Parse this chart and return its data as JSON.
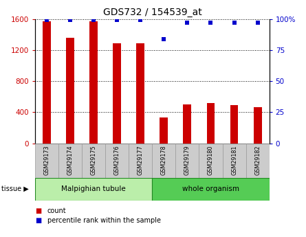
{
  "title": "GDS732 / 154539_at",
  "categories": [
    "GSM29173",
    "GSM29174",
    "GSM29175",
    "GSM29176",
    "GSM29177",
    "GSM29178",
    "GSM29179",
    "GSM29180",
    "GSM29181",
    "GSM29182"
  ],
  "counts": [
    1570,
    1360,
    1570,
    1290,
    1290,
    330,
    500,
    520,
    490,
    470
  ],
  "percentiles": [
    99,
    99,
    99,
    99,
    99,
    84,
    97,
    97,
    97,
    97
  ],
  "bar_color": "#cc0000",
  "dot_color": "#0000cc",
  "ylim_left": [
    0,
    1600
  ],
  "ylim_right": [
    0,
    100
  ],
  "yticks_left": [
    0,
    400,
    800,
    1200,
    1600
  ],
  "yticks_right": [
    0,
    25,
    50,
    75,
    100
  ],
  "ytick_right_labels": [
    "0",
    "25",
    "50",
    "75",
    "100%"
  ],
  "group1_label": "Malpighian tubule",
  "group1_count": 5,
  "group2_label": "whole organism",
  "group2_count": 5,
  "tissue_label": "tissue",
  "legend_count": "count",
  "legend_percentile": "percentile rank within the sample",
  "bg_plot": "#ffffff",
  "bg_xtick": "#cccccc",
  "bg_group1": "#bbeeaa",
  "bg_group2": "#55cc55",
  "left_tick_color": "#cc0000",
  "right_tick_color": "#0000cc",
  "grid_color": "#000000",
  "spine_color": "#000000"
}
